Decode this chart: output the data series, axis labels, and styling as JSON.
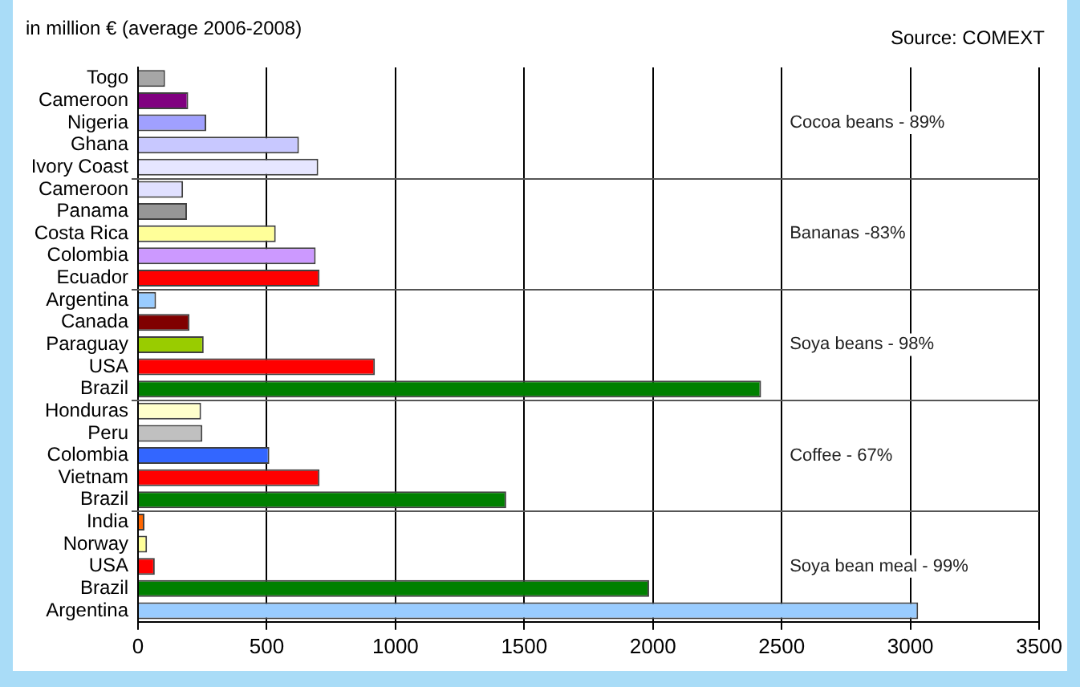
{
  "chart_data": {
    "type": "bar",
    "orientation": "horizontal",
    "title": "in million € (average 2006-2008)",
    "subtitle": "Source: COMEXT",
    "categories": [
      "Togo",
      "Cameroon",
      "Nigeria",
      "Ghana",
      "Ivory Coast",
      "Cameroon",
      "Panama",
      "Costa Rica",
      "Colombia",
      "Ecuador",
      "Argentina",
      "Canada",
      "Paraguay",
      "USA",
      "Brazil",
      "Honduras",
      "Peru",
      "Colombia",
      "Vietnam",
      "Brazil",
      "India",
      "Norway",
      "USA",
      "Brazil",
      "Argentina"
    ],
    "values": [
      105,
      195,
      265,
      625,
      700,
      175,
      190,
      535,
      690,
      705,
      70,
      200,
      255,
      920,
      2420,
      245,
      250,
      510,
      705,
      1430,
      25,
      35,
      65,
      1985,
      3030
    ],
    "colors": [
      "#a6a6a6",
      "#800080",
      "#a0a0ff",
      "#c8c8ff",
      "#e6e6ff",
      "#e0e0ff",
      "#969696",
      "#ffff99",
      "#cc99ff",
      "#ff0000",
      "#99ccff",
      "#800000",
      "#99cc00",
      "#ff0000",
      "#008000",
      "#ffffcc",
      "#c0c0c0",
      "#3366ff",
      "#ff0000",
      "#008000",
      "#ff6600",
      "#ffff99",
      "#ff0000",
      "#008000",
      "#99ccff"
    ],
    "xlim": [
      0,
      3500
    ],
    "xticks": [
      0,
      500,
      1000,
      1500,
      2000,
      2500,
      3000,
      3500
    ],
    "grid": "x",
    "annotations": [
      "Cocoa beans - 89%",
      "Bananas -83%",
      "Soya beans - 98%",
      "Coffee - 67%",
      "Soya bean meal - 99%"
    ]
  }
}
